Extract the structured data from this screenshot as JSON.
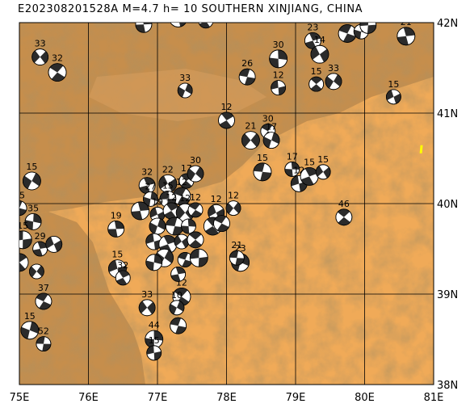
{
  "title": "E202308201528A  M=4.7 h= 10 SOUTHERN XINJIANG, CHINA",
  "lon_labels": [
    "75E",
    "76E",
    "77E",
    "78E",
    "79E",
    "80E",
    "81E"
  ],
  "lat_labels": [
    "42N",
    "41N",
    "40N",
    "39N",
    "38N"
  ],
  "colors": {
    "plain": "#f0aa58",
    "relief_dark": "#b27a3c",
    "relief_mid": "#c99050",
    "grid": "#000000",
    "beachball_compression": "#2b2b2b",
    "beachball_dilatation": "#ffffff",
    "target_event": "#ffff00"
  },
  "events": [
    {
      "lon": 77.8,
      "lat": 39.73,
      "label": "",
      "target": true
    },
    {
      "lon": 76.8,
      "lat": 41.98,
      "label": "35"
    },
    {
      "lon": 77.3,
      "lat": 42.05,
      "label": "15"
    },
    {
      "lon": 77.7,
      "lat": 42.02,
      "label": "19"
    },
    {
      "lon": 75.3,
      "lat": 41.62,
      "label": "33"
    },
    {
      "lon": 75.55,
      "lat": 41.45,
      "label": "32"
    },
    {
      "lon": 77.4,
      "lat": 41.25,
      "label": "33"
    },
    {
      "lon": 78.3,
      "lat": 41.4,
      "label": "26"
    },
    {
      "lon": 78.75,
      "lat": 41.6,
      "label": "30"
    },
    {
      "lon": 78.75,
      "lat": 41.28,
      "label": "12"
    },
    {
      "lon": 79.25,
      "lat": 41.8,
      "label": "23"
    },
    {
      "lon": 79.35,
      "lat": 41.65,
      "label": "14"
    },
    {
      "lon": 79.3,
      "lat": 41.32,
      "label": "15"
    },
    {
      "lon": 79.55,
      "lat": 41.35,
      "label": "33"
    },
    {
      "lon": 79.75,
      "lat": 41.88,
      "label": "23"
    },
    {
      "lon": 79.95,
      "lat": 41.9,
      "label": "25"
    },
    {
      "lon": 80.05,
      "lat": 41.97,
      "label": "15"
    },
    {
      "lon": 80.6,
      "lat": 41.85,
      "label": "21"
    },
    {
      "lon": 80.42,
      "lat": 41.18,
      "label": "15"
    },
    {
      "lon": 78.0,
      "lat": 40.92,
      "label": "12"
    },
    {
      "lon": 78.35,
      "lat": 40.7,
      "label": "21"
    },
    {
      "lon": 78.6,
      "lat": 40.8,
      "label": "30"
    },
    {
      "lon": 78.65,
      "lat": 40.7,
      "label": "17"
    },
    {
      "lon": 78.52,
      "lat": 40.35,
      "label": "15"
    },
    {
      "lon": 78.95,
      "lat": 40.38,
      "label": "17"
    },
    {
      "lon": 79.05,
      "lat": 40.22,
      "label": "12"
    },
    {
      "lon": 79.2,
      "lat": 40.3,
      "label": "15"
    },
    {
      "lon": 79.4,
      "lat": 40.35,
      "label": "15"
    },
    {
      "lon": 79.7,
      "lat": 39.85,
      "label": "46"
    },
    {
      "lon": 75.18,
      "lat": 40.25,
      "label": "15"
    },
    {
      "lon": 75.0,
      "lat": 39.95,
      "label": "15"
    },
    {
      "lon": 75.2,
      "lat": 39.8,
      "label": "35"
    },
    {
      "lon": 75.05,
      "lat": 39.6,
      "label": "15"
    },
    {
      "lon": 75.3,
      "lat": 39.5,
      "label": "29"
    },
    {
      "lon": 75.5,
      "lat": 39.55,
      "label": ""
    },
    {
      "lon": 75.0,
      "lat": 39.35,
      "label": ""
    },
    {
      "lon": 75.25,
      "lat": 39.25,
      "label": ""
    },
    {
      "lon": 75.35,
      "lat": 38.92,
      "label": "37"
    },
    {
      "lon": 75.15,
      "lat": 38.6,
      "label": "15"
    },
    {
      "lon": 75.35,
      "lat": 38.45,
      "label": "52"
    },
    {
      "lon": 76.4,
      "lat": 39.72,
      "label": "19"
    },
    {
      "lon": 76.42,
      "lat": 39.28,
      "label": "15"
    },
    {
      "lon": 76.5,
      "lat": 39.18,
      "label": "32"
    },
    {
      "lon": 76.85,
      "lat": 38.85,
      "label": "33"
    },
    {
      "lon": 77.35,
      "lat": 38.97,
      "label": "12"
    },
    {
      "lon": 77.28,
      "lat": 38.85,
      "label": "10"
    },
    {
      "lon": 77.3,
      "lat": 38.65,
      "label": ""
    },
    {
      "lon": 76.95,
      "lat": 38.5,
      "label": "44"
    },
    {
      "lon": 76.95,
      "lat": 38.35,
      "label": "15"
    },
    {
      "lon": 76.85,
      "lat": 40.2,
      "label": "32"
    },
    {
      "lon": 77.15,
      "lat": 40.22,
      "label": "22"
    },
    {
      "lon": 77.42,
      "lat": 40.25,
      "label": "17"
    },
    {
      "lon": 77.55,
      "lat": 40.33,
      "label": "30"
    },
    {
      "lon": 77.35,
      "lat": 40.08,
      "label": "12"
    },
    {
      "lon": 76.9,
      "lat": 40.05,
      "label": "27"
    },
    {
      "lon": 77.15,
      "lat": 40.05,
      "label": "15"
    },
    {
      "lon": 76.75,
      "lat": 39.92,
      "label": ""
    },
    {
      "lon": 77.0,
      "lat": 39.88,
      "label": "19"
    },
    {
      "lon": 77.2,
      "lat": 39.92,
      "label": "12"
    },
    {
      "lon": 77.4,
      "lat": 39.9,
      "label": "12"
    },
    {
      "lon": 77.55,
      "lat": 39.93,
      "label": "12"
    },
    {
      "lon": 77.0,
      "lat": 39.75,
      "label": ""
    },
    {
      "lon": 77.25,
      "lat": 39.75,
      "label": ""
    },
    {
      "lon": 77.45,
      "lat": 39.75,
      "label": ""
    },
    {
      "lon": 76.95,
      "lat": 39.58,
      "label": ""
    },
    {
      "lon": 77.15,
      "lat": 39.55,
      "label": ""
    },
    {
      "lon": 77.35,
      "lat": 39.58,
      "label": ""
    },
    {
      "lon": 77.55,
      "lat": 39.6,
      "label": ""
    },
    {
      "lon": 77.1,
      "lat": 39.4,
      "label": ""
    },
    {
      "lon": 77.4,
      "lat": 39.38,
      "label": ""
    },
    {
      "lon": 76.95,
      "lat": 39.35,
      "label": ""
    },
    {
      "lon": 77.6,
      "lat": 39.4,
      "label": ""
    },
    {
      "lon": 77.3,
      "lat": 39.22,
      "label": ""
    },
    {
      "lon": 77.85,
      "lat": 39.9,
      "label": "12"
    },
    {
      "lon": 77.8,
      "lat": 39.75,
      "label": ""
    },
    {
      "lon": 78.1,
      "lat": 39.95,
      "label": "12"
    },
    {
      "lon": 77.93,
      "lat": 39.78,
      "label": ""
    },
    {
      "lon": 78.2,
      "lat": 39.35,
      "label": "23"
    },
    {
      "lon": 78.15,
      "lat": 39.4,
      "label": "21"
    },
    {
      "lon": 80.82,
      "lat": 40.6,
      "label": "",
      "yellow_small": true
    }
  ]
}
